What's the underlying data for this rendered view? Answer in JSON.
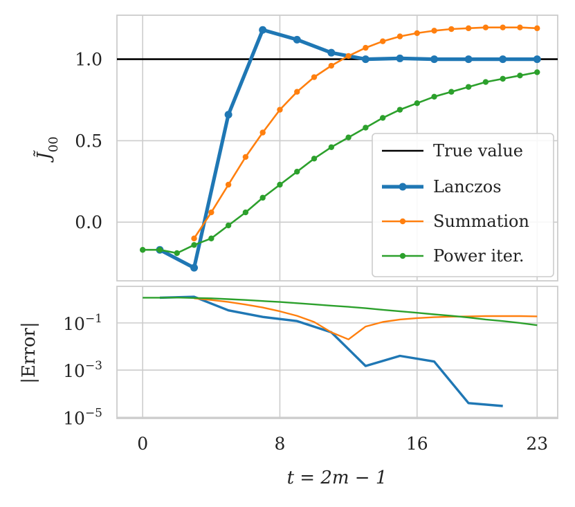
{
  "chart_data": [
    {
      "type": "line",
      "panel": "top",
      "ylabel": "J̃00",
      "xlim": [
        -1.5,
        24.2
      ],
      "ylim": [
        -0.36,
        1.27
      ],
      "yticks": [
        0.0,
        0.5,
        1.0
      ],
      "ytick_labels": [
        "0.0",
        "0.5",
        "1.0"
      ],
      "true_value": 1.0,
      "legend_position": "lower-right",
      "series": [
        {
          "name": "True value",
          "color": "#000000"
        },
        {
          "name": "Lanczos",
          "color": "#1f77b4",
          "x": [
            1,
            3,
            5,
            7,
            9,
            11,
            13,
            15,
            17,
            19,
            21,
            23
          ],
          "y": [
            -0.17,
            -0.28,
            0.66,
            1.18,
            1.12,
            1.04,
            1.0,
            1.005,
            1.0,
            1.0,
            1.0,
            1.0
          ]
        },
        {
          "name": "Summation",
          "color": "#ff7f0e",
          "x": [
            3,
            4,
            5,
            6,
            7,
            8,
            9,
            10,
            11,
            12,
            13,
            14,
            15,
            16,
            17,
            18,
            19,
            20,
            21,
            22,
            23
          ],
          "y": [
            -0.1,
            0.06,
            0.23,
            0.4,
            0.55,
            0.69,
            0.8,
            0.89,
            0.96,
            1.02,
            1.07,
            1.11,
            1.14,
            1.16,
            1.175,
            1.185,
            1.19,
            1.195,
            1.195,
            1.195,
            1.19
          ]
        },
        {
          "name": "Power iter.",
          "color": "#2ca02c",
          "x": [
            0,
            1,
            2,
            3,
            4,
            5,
            6,
            7,
            8,
            9,
            10,
            11,
            12,
            13,
            14,
            15,
            16,
            17,
            18,
            19,
            20,
            21,
            22,
            23
          ],
          "y": [
            -0.17,
            -0.17,
            -0.19,
            -0.14,
            -0.1,
            -0.02,
            0.06,
            0.15,
            0.23,
            0.31,
            0.39,
            0.46,
            0.52,
            0.58,
            0.64,
            0.69,
            0.73,
            0.77,
            0.8,
            0.83,
            0.86,
            0.88,
            0.9,
            0.92
          ]
        }
      ]
    },
    {
      "type": "line",
      "panel": "bottom",
      "ylabel": "|Error|",
      "xlabel": "t = 2m − 1",
      "yscale": "log",
      "xlim": [
        -1.5,
        24.2
      ],
      "ylim_log10": [
        -5.05,
        0.55
      ],
      "yticks_log10": [
        -5,
        -3,
        -1
      ],
      "ytick_labels": [
        {
          "base": "10",
          "exp": "−5"
        },
        {
          "base": "10",
          "exp": "−3"
        },
        {
          "base": "10",
          "exp": "−1"
        }
      ],
      "xticks": [
        0,
        8,
        16,
        23
      ],
      "xtick_labels": [
        "0",
        "8",
        "16",
        "23"
      ],
      "series": [
        {
          "name": "Lanczos",
          "color": "#1f77b4",
          "x": [
            1,
            3,
            5,
            7,
            9,
            11,
            13,
            15,
            17,
            19,
            21
          ],
          "y": [
            1.17,
            1.28,
            0.34,
            0.18,
            0.12,
            0.04,
            0.0015,
            0.004,
            0.0023,
            4e-05,
            3e-05
          ]
        },
        {
          "name": "Summation",
          "color": "#ff7f0e",
          "x": [
            3,
            4,
            5,
            6,
            7,
            8,
            9,
            10,
            11,
            12,
            13,
            14,
            15,
            16,
            17,
            18,
            19,
            20,
            21,
            22,
            23
          ],
          "y": [
            1.1,
            0.94,
            0.77,
            0.6,
            0.45,
            0.31,
            0.2,
            0.11,
            0.04,
            0.02,
            0.07,
            0.11,
            0.14,
            0.16,
            0.175,
            0.185,
            0.19,
            0.195,
            0.195,
            0.195,
            0.19
          ]
        },
        {
          "name": "Power iter.",
          "color": "#2ca02c",
          "x": [
            0,
            1,
            2,
            3,
            4,
            5,
            6,
            7,
            8,
            9,
            10,
            11,
            12,
            13,
            14,
            15,
            16,
            17,
            18,
            19,
            20,
            21,
            22,
            23
          ],
          "y": [
            1.17,
            1.17,
            1.19,
            1.14,
            1.1,
            1.02,
            0.94,
            0.85,
            0.77,
            0.69,
            0.61,
            0.54,
            0.48,
            0.42,
            0.36,
            0.31,
            0.27,
            0.23,
            0.2,
            0.17,
            0.14,
            0.12,
            0.1,
            0.08
          ]
        }
      ]
    }
  ]
}
